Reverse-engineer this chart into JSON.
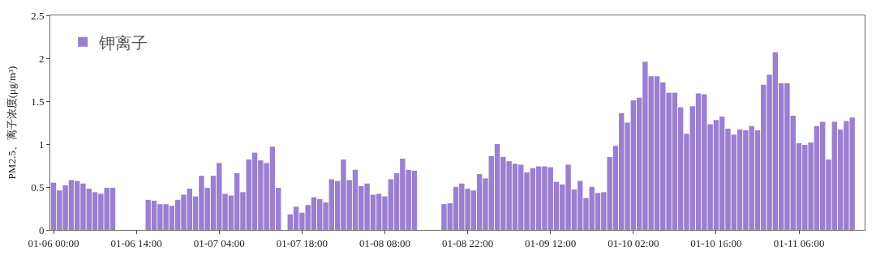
{
  "chart_data": {
    "type": "bar",
    "ylabel": "PM2.5、离子浓度(μg/m³)",
    "categories": [
      "01-06 00:00",
      null,
      null,
      null,
      null,
      null,
      null,
      null,
      null,
      null,
      null,
      null,
      null,
      null,
      "01-06 14:00",
      null,
      null,
      null,
      null,
      null,
      null,
      null,
      null,
      null,
      null,
      null,
      null,
      null,
      "01-07 04:00",
      null,
      null,
      null,
      null,
      null,
      null,
      null,
      null,
      null,
      null,
      null,
      null,
      null,
      "01-07 18:00",
      null,
      null,
      null,
      null,
      null,
      null,
      null,
      null,
      null,
      null,
      null,
      null,
      null,
      "01-08 08:00",
      null,
      null,
      null,
      null,
      null,
      null,
      null,
      null,
      null,
      null,
      null,
      null,
      null,
      "01-08 22:00",
      null,
      null,
      null,
      null,
      null,
      null,
      null,
      null,
      null,
      null,
      null,
      null,
      null,
      "01-09 12:00",
      null,
      null,
      null,
      null,
      null,
      null,
      null,
      null,
      null,
      null,
      null,
      null,
      null,
      "01-10 02:00",
      null,
      null,
      null,
      null,
      null,
      null,
      null,
      null,
      null,
      null,
      null,
      null,
      null,
      "01-10 16:00",
      null,
      null,
      null,
      null,
      null,
      null,
      null,
      null,
      null,
      null,
      null,
      null,
      null,
      "01-11 06:00",
      null,
      null,
      null,
      null,
      null,
      null,
      null,
      null,
      null
    ],
    "series": [
      {
        "name": "钾离子",
        "color": "#9b7fd0",
        "values": [
          0.55,
          0.46,
          0.52,
          0.58,
          0.57,
          0.54,
          0.48,
          0.44,
          0.42,
          0.49,
          0.49,
          null,
          null,
          null,
          null,
          null,
          0.35,
          0.34,
          0.3,
          0.3,
          0.28,
          0.35,
          0.41,
          0.48,
          0.39,
          0.63,
          0.49,
          0.63,
          0.78,
          0.42,
          0.4,
          0.66,
          0.44,
          0.82,
          0.9,
          0.81,
          0.78,
          0.97,
          0.49,
          null,
          0.18,
          0.27,
          0.2,
          0.29,
          0.38,
          0.36,
          0.32,
          0.59,
          0.57,
          0.82,
          0.58,
          0.7,
          0.51,
          0.54,
          0.41,
          0.42,
          0.39,
          0.59,
          0.66,
          0.83,
          0.7,
          0.69,
          null,
          null,
          null,
          null,
          0.3,
          0.31,
          0.5,
          0.54,
          0.48,
          0.46,
          0.65,
          0.6,
          0.86,
          1.0,
          0.85,
          0.8,
          0.77,
          0.76,
          0.67,
          0.72,
          0.74,
          0.74,
          0.73,
          0.56,
          0.53,
          0.76,
          0.47,
          0.57,
          0.37,
          0.5,
          0.43,
          0.44,
          0.85,
          0.98,
          1.36,
          1.25,
          1.51,
          1.54,
          1.96,
          1.79,
          1.79,
          1.72,
          1.6,
          1.6,
          1.43,
          1.12,
          1.44,
          1.59,
          1.58,
          1.23,
          1.28,
          1.32,
          1.18,
          1.11,
          1.17,
          1.16,
          1.21,
          1.16,
          1.69,
          1.81,
          2.07,
          1.71,
          1.71,
          1.33,
          1.01,
          0.99,
          1.02,
          1.21,
          1.26,
          0.82,
          1.26,
          1.17,
          1.27,
          1.31
        ]
      }
    ],
    "ylim": [
      0,
      2.5
    ],
    "yticks": [
      0,
      0.5,
      1,
      1.5,
      2,
      2.5
    ],
    "legend": "top left"
  }
}
